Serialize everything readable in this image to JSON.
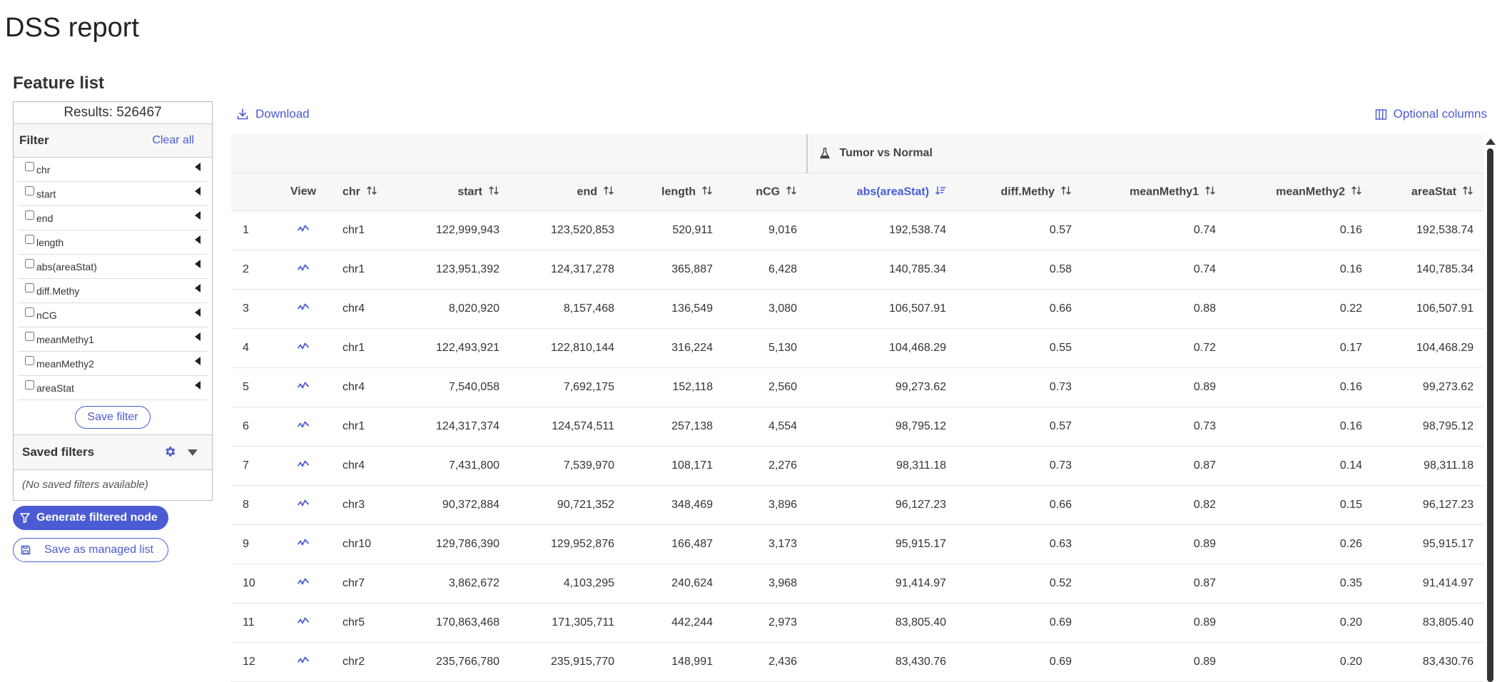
{
  "page_title": "DSS report",
  "section_title": "Feature list",
  "sidebar": {
    "results_label": "Results: 526467",
    "filter_label": "Filter",
    "clear_all": "Clear all",
    "filters": [
      "chr",
      "start",
      "end",
      "length",
      "abs(areaStat)",
      "diff.Methy",
      "nCG",
      "meanMethy1",
      "meanMethy2",
      "areaStat"
    ],
    "save_filter": "Save filter",
    "saved_filters_label": "Saved filters",
    "no_saved": "(No saved filters available)",
    "generate_button": "Generate filtered node",
    "managed_list_button": "Save as managed list"
  },
  "toolbar": {
    "download": "Download",
    "optional_columns": "Optional columns"
  },
  "colors": {
    "accent": "#4a5bd4"
  },
  "table": {
    "group_header": "Tumor vs Normal",
    "columns": [
      "",
      "View",
      "chr",
      "start",
      "end",
      "length",
      "nCG",
      "abs(areaStat)",
      "diff.Methy",
      "meanMethy1",
      "meanMethy2",
      "areaStat"
    ],
    "sorted_column": "abs(areaStat)",
    "rows": [
      [
        "1",
        "chr1",
        "122,999,943",
        "123,520,853",
        "520,911",
        "9,016",
        "192,538.74",
        "0.57",
        "0.74",
        "0.16",
        "192,538.74"
      ],
      [
        "2",
        "chr1",
        "123,951,392",
        "124,317,278",
        "365,887",
        "6,428",
        "140,785.34",
        "0.58",
        "0.74",
        "0.16",
        "140,785.34"
      ],
      [
        "3",
        "chr4",
        "8,020,920",
        "8,157,468",
        "136,549",
        "3,080",
        "106,507.91",
        "0.66",
        "0.88",
        "0.22",
        "106,507.91"
      ],
      [
        "4",
        "chr1",
        "122,493,921",
        "122,810,144",
        "316,224",
        "5,130",
        "104,468.29",
        "0.55",
        "0.72",
        "0.17",
        "104,468.29"
      ],
      [
        "5",
        "chr4",
        "7,540,058",
        "7,692,175",
        "152,118",
        "2,560",
        "99,273.62",
        "0.73",
        "0.89",
        "0.16",
        "99,273.62"
      ],
      [
        "6",
        "chr1",
        "124,317,374",
        "124,574,511",
        "257,138",
        "4,554",
        "98,795.12",
        "0.57",
        "0.73",
        "0.16",
        "98,795.12"
      ],
      [
        "7",
        "chr4",
        "7,431,800",
        "7,539,970",
        "108,171",
        "2,276",
        "98,311.18",
        "0.73",
        "0.87",
        "0.14",
        "98,311.18"
      ],
      [
        "8",
        "chr3",
        "90,372,884",
        "90,721,352",
        "348,469",
        "3,896",
        "96,127.23",
        "0.66",
        "0.82",
        "0.15",
        "96,127.23"
      ],
      [
        "9",
        "chr10",
        "129,786,390",
        "129,952,876",
        "166,487",
        "3,173",
        "95,915.17",
        "0.63",
        "0.89",
        "0.26",
        "95,915.17"
      ],
      [
        "10",
        "chr7",
        "3,862,672",
        "4,103,295",
        "240,624",
        "3,968",
        "91,414.97",
        "0.52",
        "0.87",
        "0.35",
        "91,414.97"
      ],
      [
        "11",
        "chr5",
        "170,863,468",
        "171,305,711",
        "442,244",
        "2,973",
        "83,805.40",
        "0.69",
        "0.89",
        "0.20",
        "83,805.40"
      ],
      [
        "12",
        "chr2",
        "235,766,780",
        "235,915,770",
        "148,991",
        "2,436",
        "83,430.76",
        "0.69",
        "0.89",
        "0.20",
        "83,430.76"
      ]
    ]
  }
}
